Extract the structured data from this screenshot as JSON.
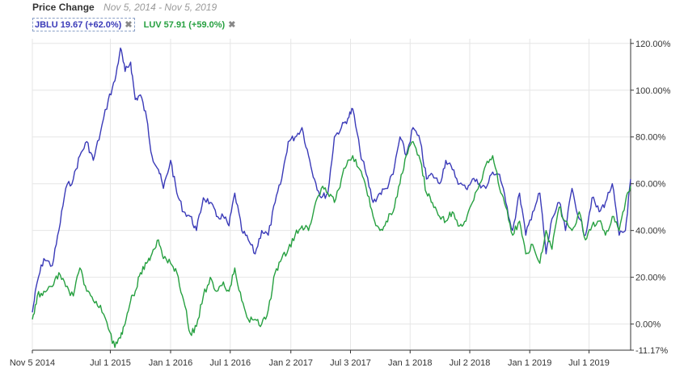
{
  "header": {
    "title": "Price Change",
    "range": "Nov 5, 2014 - Nov 5, 2019"
  },
  "legend": [
    {
      "label": "JBLU 19.67 (+62.0%)",
      "color": "#3a3ab8",
      "close": "✖",
      "active": true
    },
    {
      "label": "LUV 57.91 (+59.0%)",
      "color": "#26a040",
      "close": "✖",
      "active": false
    }
  ],
  "chart_data": {
    "type": "line",
    "x_tick_labels": [
      "Nov 5 2014",
      "Jul 1 2015",
      "Jan 1 2016",
      "Jul 1 2016",
      "Jan 2 2017",
      "Jul 3 2017",
      "Jan 1 2018",
      "Jul 2 2018",
      "Jan 1 2019",
      "Jul 1 2019"
    ],
    "y_tick_labels": [
      "120.00%",
      "100.00%",
      "80.00%",
      "60.00%",
      "40.00%",
      "20.00%",
      "0.00%",
      "-11.17%"
    ],
    "ylim": [
      -11.17,
      122
    ],
    "grid": true,
    "series": [
      {
        "name": "JBLU",
        "color": "#3a3ab8",
        "x": [
          "2014-11-05",
          "2014-11-20",
          "2014-12-10",
          "2015-01-05",
          "2015-01-25",
          "2015-02-15",
          "2015-03-10",
          "2015-03-30",
          "2015-04-20",
          "2015-05-10",
          "2015-06-01",
          "2015-06-25",
          "2015-07-15",
          "2015-08-01",
          "2015-08-15",
          "2015-09-01",
          "2015-09-15",
          "2015-10-01",
          "2015-10-20",
          "2015-11-05",
          "2015-11-25",
          "2015-12-10",
          "2016-01-01",
          "2016-01-20",
          "2016-02-10",
          "2016-03-01",
          "2016-03-20",
          "2016-04-10",
          "2016-05-01",
          "2016-05-20",
          "2016-06-10",
          "2016-06-27",
          "2016-07-15",
          "2016-08-05",
          "2016-08-25",
          "2016-09-15",
          "2016-10-05",
          "2016-10-25",
          "2016-11-15",
          "2016-12-05",
          "2016-12-25",
          "2017-01-15",
          "2017-02-05",
          "2017-02-25",
          "2017-03-15",
          "2017-04-05",
          "2017-04-25",
          "2017-05-15",
          "2017-06-05",
          "2017-06-25",
          "2017-07-10",
          "2017-08-01",
          "2017-08-20",
          "2017-09-10",
          "2017-10-01",
          "2017-10-20",
          "2017-11-10",
          "2017-12-01",
          "2017-12-20",
          "2018-01-10",
          "2018-02-01",
          "2018-02-20",
          "2018-03-10",
          "2018-04-01",
          "2018-04-20",
          "2018-05-10",
          "2018-06-01",
          "2018-06-20",
          "2018-07-10",
          "2018-08-01",
          "2018-08-20",
          "2018-09-10",
          "2018-10-01",
          "2018-10-20",
          "2018-11-10",
          "2018-12-01",
          "2018-12-20",
          "2019-01-10",
          "2019-02-01",
          "2019-02-20",
          "2019-03-10",
          "2019-04-01",
          "2019-04-20",
          "2019-05-10",
          "2019-06-01",
          "2019-06-20",
          "2019-07-10",
          "2019-08-01",
          "2019-08-20",
          "2019-09-10",
          "2019-10-01",
          "2019-10-20",
          "2019-11-05"
        ],
        "y": [
          5,
          18,
          28,
          25,
          40,
          58,
          62,
          72,
          78,
          70,
          82,
          96,
          104,
          118,
          108,
          112,
          96,
          98,
          88,
          72,
          66,
          58,
          70,
          56,
          48,
          46,
          40,
          54,
          52,
          46,
          46,
          42,
          56,
          40,
          36,
          30,
          40,
          38,
          52,
          62,
          78,
          80,
          84,
          72,
          62,
          54,
          56,
          80,
          84,
          88,
          92,
          74,
          64,
          52,
          56,
          58,
          64,
          80,
          72,
          84,
          78,
          62,
          64,
          60,
          70,
          66,
          60,
          58,
          62,
          60,
          58,
          65,
          64,
          52,
          40,
          56,
          38,
          48,
          56,
          30,
          45,
          52,
          40,
          58,
          45,
          38,
          54,
          48,
          52,
          60,
          38,
          40,
          62
        ]
      },
      {
        "name": "LUV",
        "color": "#26a040",
        "x": [
          "2014-11-05",
          "2014-11-20",
          "2014-12-10",
          "2015-01-05",
          "2015-01-25",
          "2015-02-15",
          "2015-03-10",
          "2015-03-30",
          "2015-04-20",
          "2015-05-10",
          "2015-06-01",
          "2015-06-25",
          "2015-07-15",
          "2015-08-01",
          "2015-08-15",
          "2015-09-01",
          "2015-09-15",
          "2015-10-01",
          "2015-10-20",
          "2015-11-05",
          "2015-11-25",
          "2015-12-10",
          "2016-01-01",
          "2016-01-20",
          "2016-02-10",
          "2016-03-01",
          "2016-03-20",
          "2016-04-10",
          "2016-05-01",
          "2016-05-20",
          "2016-06-10",
          "2016-06-27",
          "2016-07-15",
          "2016-08-05",
          "2016-08-25",
          "2016-09-15",
          "2016-10-05",
          "2016-10-25",
          "2016-11-15",
          "2016-12-05",
          "2016-12-25",
          "2017-01-15",
          "2017-02-05",
          "2017-02-25",
          "2017-03-15",
          "2017-04-05",
          "2017-04-25",
          "2017-05-15",
          "2017-06-05",
          "2017-06-25",
          "2017-07-10",
          "2017-08-01",
          "2017-08-20",
          "2017-09-10",
          "2017-10-01",
          "2017-10-20",
          "2017-11-10",
          "2017-12-01",
          "2017-12-20",
          "2018-01-10",
          "2018-02-01",
          "2018-02-20",
          "2018-03-10",
          "2018-04-01",
          "2018-04-20",
          "2018-05-10",
          "2018-06-01",
          "2018-06-20",
          "2018-07-10",
          "2018-08-01",
          "2018-08-20",
          "2018-09-10",
          "2018-10-01",
          "2018-10-20",
          "2018-11-10",
          "2018-12-01",
          "2018-12-20",
          "2019-01-10",
          "2019-02-01",
          "2019-02-20",
          "2019-03-10",
          "2019-04-01",
          "2019-04-20",
          "2019-05-10",
          "2019-06-01",
          "2019-06-20",
          "2019-07-10",
          "2019-08-01",
          "2019-08-20",
          "2019-09-10",
          "2019-10-01",
          "2019-10-20",
          "2019-11-05"
        ],
        "y": [
          2,
          12,
          14,
          16,
          22,
          16,
          12,
          24,
          14,
          10,
          8,
          -2,
          -10,
          -6,
          0,
          10,
          14,
          22,
          26,
          30,
          36,
          28,
          26,
          22,
          10,
          -4,
          -1,
          12,
          20,
          14,
          18,
          14,
          24,
          10,
          2,
          2,
          0,
          6,
          22,
          28,
          32,
          38,
          42,
          40,
          50,
          58,
          56,
          52,
          62,
          70,
          72,
          66,
          58,
          46,
          40,
          44,
          48,
          60,
          72,
          78,
          70,
          56,
          52,
          46,
          44,
          48,
          42,
          44,
          52,
          60,
          68,
          72,
          58,
          50,
          38,
          44,
          30,
          34,
          26,
          40,
          32,
          50,
          44,
          40,
          48,
          36,
          42,
          44,
          38,
          46,
          40,
          52,
          59
        ]
      }
    ]
  }
}
